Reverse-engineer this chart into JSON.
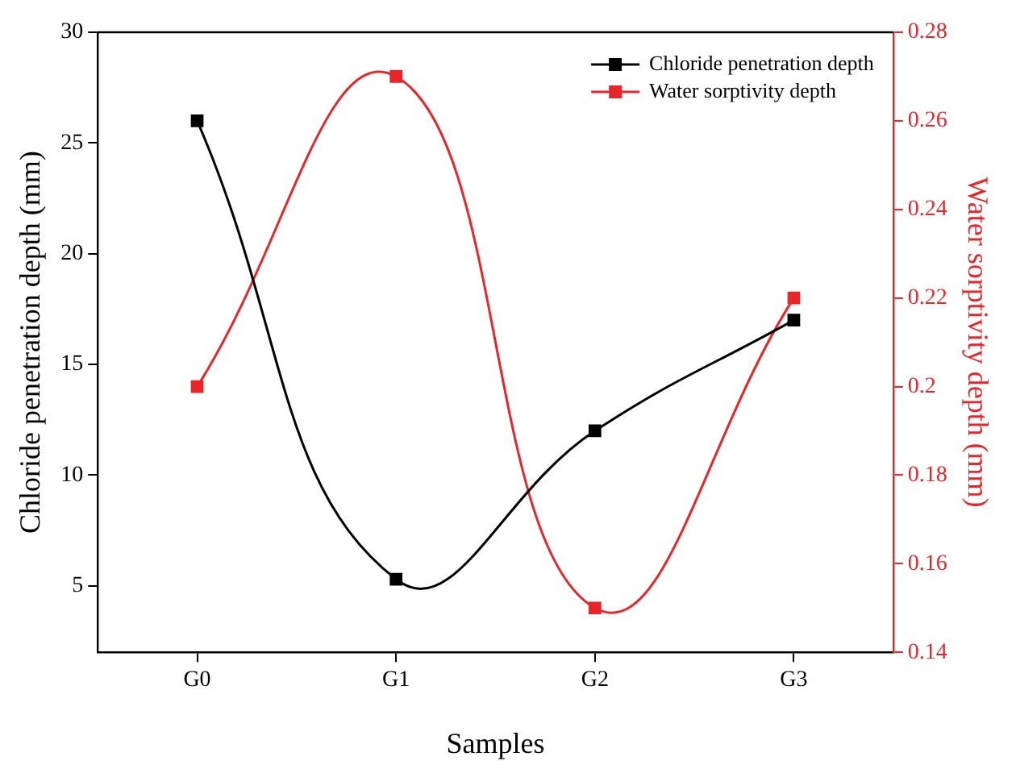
{
  "chart_data": {
    "type": "line",
    "xlabel": "Samples",
    "ylabel": "Chloride penetration depth (mm)",
    "y2label": "Water sorptivity depth (mm)",
    "categories": [
      "G0",
      "G1",
      "G2",
      "G3"
    ],
    "series": [
      {
        "name": "Chloride penetration depth",
        "color": "#000000",
        "values": [
          26,
          5.3,
          12,
          17
        ]
      },
      {
        "name": "Water sorptivity depth",
        "color": "#e8262a",
        "values": [
          0.2,
          0.27,
          0.15,
          0.22
        ],
        "axis": "y2"
      }
    ],
    "ylim": [
      2,
      30
    ],
    "yticks": [
      5,
      10,
      15,
      20,
      25,
      30
    ],
    "y2lim": [
      0.14,
      0.28
    ],
    "y2ticks": [
      0.14,
      0.16,
      0.18,
      0.2,
      0.22,
      0.24,
      0.26,
      0.28
    ],
    "grid": false,
    "legend": "top right",
    "marker": "square",
    "line_style": "solid"
  }
}
